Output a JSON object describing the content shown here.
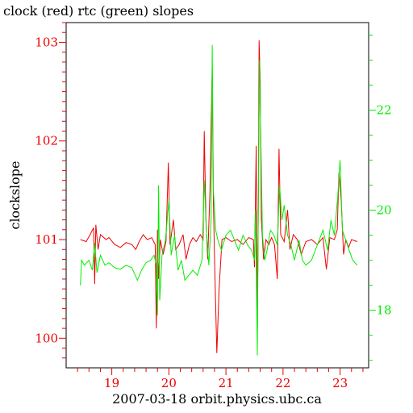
{
  "chart_data": {
    "type": "line",
    "title": "clock (red) rtc (green) slopes",
    "xlabel": "2007-03-18 orbit.physics.ubc.ca",
    "ylabel": "clockslope",
    "x_range": [
      18.2,
      23.5
    ],
    "x_ticks": [
      19,
      20,
      21,
      22,
      23
    ],
    "y_left_range": [
      99.7,
      103.2
    ],
    "y_left_ticks": [
      100,
      101,
      102,
      103
    ],
    "y_right_range": [
      16.85,
      23.75
    ],
    "y_right_ticks": [
      18,
      20,
      22
    ],
    "colors": {
      "clock": "#ee0000",
      "rtc": "#00ee00",
      "axis": "#000000"
    },
    "series": [
      {
        "name": "clock",
        "axis": "left",
        "color": "#ee0000",
        "points": [
          [
            18.45,
            101.0
          ],
          [
            18.55,
            100.98
          ],
          [
            18.62,
            101.05
          ],
          [
            18.68,
            101.12
          ],
          [
            18.7,
            100.55
          ],
          [
            18.72,
            101.15
          ],
          [
            18.76,
            100.9
          ],
          [
            18.8,
            101.05
          ],
          [
            18.9,
            101.0
          ],
          [
            18.95,
            101.02
          ],
          [
            19.05,
            100.95
          ],
          [
            19.15,
            100.92
          ],
          [
            19.25,
            100.97
          ],
          [
            19.35,
            100.95
          ],
          [
            19.42,
            100.9
          ],
          [
            19.48,
            100.98
          ],
          [
            19.55,
            101.05
          ],
          [
            19.62,
            101.0
          ],
          [
            19.7,
            101.02
          ],
          [
            19.76,
            100.95
          ],
          [
            19.78,
            100.1
          ],
          [
            19.8,
            101.1
          ],
          [
            19.82,
            100.6
          ],
          [
            19.85,
            101.0
          ],
          [
            19.9,
            100.85
          ],
          [
            19.95,
            100.98
          ],
          [
            19.99,
            101.78
          ],
          [
            20.02,
            100.95
          ],
          [
            20.08,
            101.2
          ],
          [
            20.12,
            100.9
          ],
          [
            20.18,
            100.95
          ],
          [
            20.25,
            101.05
          ],
          [
            20.3,
            100.8
          ],
          [
            20.36,
            100.95
          ],
          [
            20.42,
            101.02
          ],
          [
            20.48,
            100.98
          ],
          [
            20.55,
            101.05
          ],
          [
            20.6,
            101.0
          ],
          [
            20.62,
            102.1
          ],
          [
            20.65,
            101.2
          ],
          [
            20.68,
            100.8
          ],
          [
            20.72,
            101.5
          ],
          [
            20.76,
            102.75
          ],
          [
            20.78,
            101.4
          ],
          [
            20.8,
            100.8
          ],
          [
            20.84,
            99.85
          ],
          [
            20.88,
            100.5
          ],
          [
            20.93,
            101.0
          ],
          [
            21.0,
            101.02
          ],
          [
            21.1,
            100.98
          ],
          [
            21.2,
            101.0
          ],
          [
            21.3,
            100.95
          ],
          [
            21.4,
            101.02
          ],
          [
            21.48,
            101.0
          ],
          [
            21.5,
            100.72
          ],
          [
            21.53,
            101.95
          ],
          [
            21.55,
            100.05
          ],
          [
            21.57,
            101.5
          ],
          [
            21.58,
            103.02
          ],
          [
            21.6,
            102.6
          ],
          [
            21.62,
            101.2
          ],
          [
            21.66,
            100.8
          ],
          [
            21.7,
            101.0
          ],
          [
            21.75,
            100.95
          ],
          [
            21.8,
            101.02
          ],
          [
            21.85,
            100.95
          ],
          [
            21.9,
            100.6
          ],
          [
            21.93,
            101.92
          ],
          [
            21.96,
            101.05
          ],
          [
            22.02,
            100.98
          ],
          [
            22.08,
            101.3
          ],
          [
            22.12,
            100.9
          ],
          [
            22.18,
            101.05
          ],
          [
            22.25,
            101.0
          ],
          [
            22.32,
            100.85
          ],
          [
            22.4,
            100.98
          ],
          [
            22.5,
            101.0
          ],
          [
            22.6,
            100.95
          ],
          [
            22.7,
            101.02
          ],
          [
            22.76,
            100.7
          ],
          [
            22.82,
            101.02
          ],
          [
            22.9,
            101.0
          ],
          [
            22.95,
            101.1
          ],
          [
            22.98,
            101.68
          ],
          [
            23.02,
            101.4
          ],
          [
            23.06,
            100.85
          ],
          [
            23.1,
            101.0
          ],
          [
            23.15,
            100.92
          ],
          [
            23.2,
            101.0
          ],
          [
            23.3,
            100.98
          ]
        ]
      },
      {
        "name": "rtc",
        "axis": "right",
        "color": "#00ee00",
        "points": [
          [
            18.45,
            18.5
          ],
          [
            18.47,
            19.0
          ],
          [
            18.52,
            18.9
          ],
          [
            18.6,
            19.0
          ],
          [
            18.66,
            18.8
          ],
          [
            18.7,
            19.35
          ],
          [
            18.74,
            18.75
          ],
          [
            18.8,
            19.1
          ],
          [
            18.88,
            18.9
          ],
          [
            18.95,
            18.95
          ],
          [
            19.05,
            18.85
          ],
          [
            19.15,
            18.82
          ],
          [
            19.25,
            18.9
          ],
          [
            19.35,
            18.85
          ],
          [
            19.45,
            18.6
          ],
          [
            19.52,
            18.8
          ],
          [
            19.6,
            18.95
          ],
          [
            19.68,
            19.0
          ],
          [
            19.74,
            19.1
          ],
          [
            19.78,
            18.9
          ],
          [
            19.8,
            17.9
          ],
          [
            19.82,
            20.5
          ],
          [
            19.84,
            18.2
          ],
          [
            19.88,
            19.1
          ],
          [
            19.94,
            19.4
          ],
          [
            20.0,
            20.2
          ],
          [
            20.04,
            19.1
          ],
          [
            20.1,
            19.5
          ],
          [
            20.16,
            18.8
          ],
          [
            20.22,
            19.0
          ],
          [
            20.28,
            18.6
          ],
          [
            20.35,
            18.7
          ],
          [
            20.42,
            18.8
          ],
          [
            20.5,
            18.7
          ],
          [
            20.58,
            19.0
          ],
          [
            20.62,
            20.6
          ],
          [
            20.66,
            19.5
          ],
          [
            20.7,
            18.9
          ],
          [
            20.74,
            19.8
          ],
          [
            20.76,
            23.3
          ],
          [
            20.78,
            20.4
          ],
          [
            20.82,
            19.6
          ],
          [
            20.86,
            19.4
          ],
          [
            20.92,
            19.2
          ],
          [
            21.0,
            19.5
          ],
          [
            21.08,
            19.6
          ],
          [
            21.15,
            19.4
          ],
          [
            21.22,
            19.2
          ],
          [
            21.3,
            19.5
          ],
          [
            21.38,
            19.3
          ],
          [
            21.45,
            19.2
          ],
          [
            21.5,
            19.0
          ],
          [
            21.52,
            20.0
          ],
          [
            21.55,
            17.1
          ],
          [
            21.57,
            20.5
          ],
          [
            21.59,
            23.0
          ],
          [
            21.61,
            21.5
          ],
          [
            21.64,
            19.5
          ],
          [
            21.68,
            19.0
          ],
          [
            21.72,
            19.2
          ],
          [
            21.78,
            19.6
          ],
          [
            21.84,
            19.5
          ],
          [
            21.9,
            19.3
          ],
          [
            21.94,
            20.5
          ],
          [
            21.98,
            19.8
          ],
          [
            22.02,
            20.1
          ],
          [
            22.08,
            19.5
          ],
          [
            22.14,
            19.3
          ],
          [
            22.2,
            19.0
          ],
          [
            22.28,
            19.4
          ],
          [
            22.34,
            19.0
          ],
          [
            22.4,
            18.9
          ],
          [
            22.5,
            19.0
          ],
          [
            22.6,
            19.3
          ],
          [
            22.7,
            19.6
          ],
          [
            22.78,
            19.2
          ],
          [
            22.84,
            19.8
          ],
          [
            22.9,
            19.5
          ],
          [
            22.96,
            20.3
          ],
          [
            23.0,
            21.0
          ],
          [
            23.04,
            19.6
          ],
          [
            23.1,
            19.4
          ],
          [
            23.16,
            19.2
          ],
          [
            23.22,
            19.0
          ],
          [
            23.3,
            18.9
          ]
        ]
      }
    ]
  }
}
